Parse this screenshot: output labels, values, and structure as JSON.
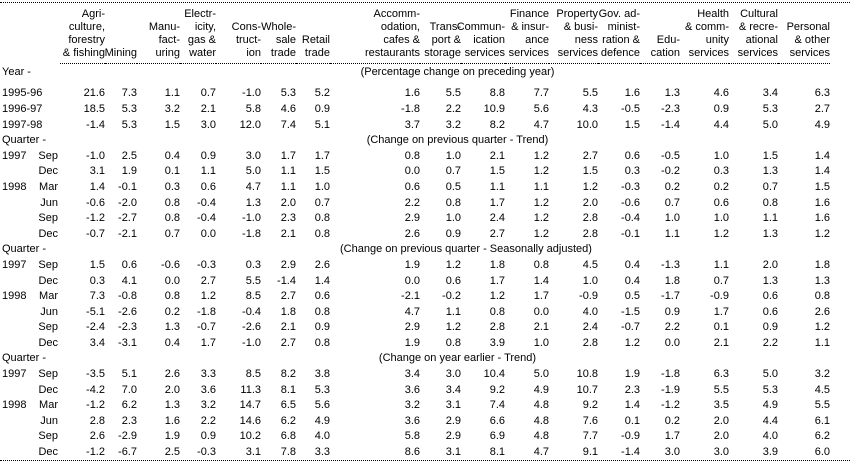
{
  "table": {
    "columns": [
      {
        "id": "agriculture-forestry-fishing",
        "header_lines": [
          "Agri-",
          "culture,",
          "forestry",
          "& fishing"
        ]
      },
      {
        "id": "mining",
        "header_lines": [
          "Mining"
        ]
      },
      {
        "id": "manufacturing",
        "header_lines": [
          "Manu-",
          "fact-",
          "uring"
        ]
      },
      {
        "id": "electricity-gas-water",
        "header_lines": [
          "Electr-",
          "icity,",
          "gas &",
          "water"
        ]
      },
      {
        "id": "construction",
        "header_lines": [
          "Cons-",
          "truct-",
          "ion"
        ]
      },
      {
        "id": "wholesale-trade",
        "header_lines": [
          "Whole-",
          "sale",
          "trade"
        ]
      },
      {
        "id": "retail-trade",
        "header_lines": [
          "Retail",
          "trade"
        ]
      },
      {
        "id": "accommodation-cafes-restaurants",
        "header_lines": [
          "Accomm-",
          "odation,",
          "cafes &",
          "restaurants"
        ]
      },
      {
        "id": "transport-storage",
        "header_lines": [
          "Trans-",
          "port &",
          "storage"
        ]
      },
      {
        "id": "communication-services",
        "header_lines": [
          "Commun-",
          "ication",
          "services"
        ]
      },
      {
        "id": "finance-insurance-services",
        "header_lines": [
          "Finance",
          "& insur-",
          "ance",
          "services"
        ]
      },
      {
        "id": "property-business-services",
        "header_lines": [
          "Property",
          "& busi-",
          "ness",
          "services"
        ]
      },
      {
        "id": "gov-administration-defence",
        "header_lines": [
          "Gov. ad-",
          "minist-",
          "ration &",
          "defence"
        ]
      },
      {
        "id": "education",
        "header_lines": [
          "Edu-",
          "cation"
        ]
      },
      {
        "id": "health-community-services",
        "header_lines": [
          "Health",
          "& comm-",
          "unity",
          "services"
        ]
      },
      {
        "id": "cultural-recreational-services",
        "header_lines": [
          "Cultural",
          "& recre-",
          "ational",
          "services"
        ]
      },
      {
        "id": "personal-other-services",
        "header_lines": [
          "Personal",
          "& other",
          "services"
        ]
      }
    ],
    "sections": [
      {
        "label": "Year -",
        "caption": "(Percentage change on preceding year)",
        "gap_after_caption": true,
        "rows": [
          {
            "period": "1995-96",
            "sub": "",
            "values": [
              21.6,
              7.3,
              1.1,
              0.7,
              -1.0,
              5.3,
              5.2,
              1.6,
              5.5,
              8.8,
              7.7,
              5.5,
              1.6,
              1.3,
              4.6,
              3.4,
              6.3
            ]
          },
          {
            "period": "1996-97",
            "sub": "",
            "values": [
              18.5,
              5.3,
              3.2,
              2.1,
              5.8,
              4.6,
              0.9,
              -1.8,
              2.2,
              10.9,
              5.6,
              4.3,
              -0.5,
              -2.3,
              0.9,
              5.3,
              2.7
            ]
          },
          {
            "period": "1997-98",
            "sub": "",
            "values": [
              -1.4,
              5.3,
              1.5,
              3.0,
              12.0,
              7.4,
              5.1,
              3.7,
              3.2,
              8.2,
              4.7,
              10.0,
              1.5,
              -1.4,
              4.4,
              5.0,
              4.9
            ]
          }
        ]
      },
      {
        "label": "Quarter -",
        "caption": "(Change on previous quarter - Trend)",
        "gap_after_caption": false,
        "rows": [
          {
            "period": "1997",
            "sub": "Sep",
            "values": [
              -1.0,
              2.5,
              0.4,
              0.9,
              3.0,
              1.7,
              1.7,
              0.8,
              1.0,
              2.1,
              1.2,
              2.7,
              0.6,
              -0.5,
              1.0,
              1.5,
              1.4
            ]
          },
          {
            "period": "",
            "sub": "Dec",
            "values": [
              3.1,
              1.9,
              0.1,
              1.1,
              5.0,
              1.1,
              1.5,
              0.0,
              0.7,
              1.5,
              1.2,
              1.5,
              0.3,
              -0.2,
              0.3,
              1.3,
              1.4
            ]
          },
          {
            "period": "1998",
            "sub": "Mar",
            "values": [
              1.4,
              -0.1,
              0.3,
              0.6,
              4.7,
              1.1,
              1.0,
              0.6,
              0.5,
              1.1,
              1.1,
              1.2,
              -0.3,
              0.2,
              0.2,
              0.7,
              1.5
            ]
          },
          {
            "period": "",
            "sub": "Jun",
            "values": [
              -0.6,
              -2.0,
              0.8,
              -0.4,
              1.3,
              2.0,
              0.7,
              2.2,
              0.8,
              1.7,
              1.2,
              2.0,
              -0.6,
              0.7,
              0.6,
              0.8,
              1.6
            ]
          },
          {
            "period": "",
            "sub": "Sep",
            "values": [
              -1.2,
              -2.7,
              0.8,
              -0.4,
              -1.0,
              2.3,
              0.8,
              2.9,
              1.0,
              2.4,
              1.2,
              2.8,
              -0.4,
              1.0,
              1.0,
              1.1,
              1.6
            ]
          },
          {
            "period": "",
            "sub": "Dec",
            "values": [
              -0.7,
              -2.1,
              0.7,
              0.0,
              -1.8,
              2.1,
              0.8,
              2.6,
              0.9,
              2.7,
              1.2,
              2.8,
              -0.1,
              1.1,
              1.2,
              1.3,
              1.2
            ]
          }
        ]
      },
      {
        "label": "Quarter -",
        "caption": "(Change on previous quarter - Seasonally adjusted)",
        "gap_after_caption": false,
        "rows": [
          {
            "period": "1997",
            "sub": "Sep",
            "values": [
              1.5,
              0.6,
              -0.6,
              -0.3,
              0.3,
              2.9,
              2.6,
              1.9,
              1.2,
              1.8,
              0.8,
              4.5,
              0.4,
              -1.3,
              1.1,
              2.0,
              1.8
            ]
          },
          {
            "period": "",
            "sub": "Dec",
            "values": [
              0.3,
              4.1,
              0.0,
              2.7,
              5.5,
              -1.4,
              1.4,
              0.0,
              0.6,
              1.7,
              1.4,
              1.0,
              0.4,
              1.8,
              0.7,
              1.3,
              1.3
            ]
          },
          {
            "period": "1998",
            "sub": "Mar",
            "values": [
              7.3,
              -0.8,
              0.8,
              1.2,
              8.5,
              2.7,
              0.6,
              -2.1,
              -0.2,
              1.2,
              1.7,
              -0.9,
              0.5,
              -1.7,
              -0.9,
              0.6,
              0.8
            ]
          },
          {
            "period": "",
            "sub": "Jun",
            "values": [
              -5.1,
              -2.6,
              0.2,
              -1.8,
              -0.4,
              1.8,
              0.8,
              4.7,
              1.1,
              0.8,
              0.0,
              4.0,
              -1.5,
              0.9,
              1.7,
              0.6,
              2.6
            ]
          },
          {
            "period": "",
            "sub": "Sep",
            "values": [
              -2.4,
              -2.3,
              1.3,
              -0.7,
              -2.6,
              2.1,
              0.9,
              2.9,
              1.2,
              2.8,
              2.1,
              2.4,
              -0.7,
              2.2,
              0.1,
              0.9,
              1.2
            ]
          },
          {
            "period": "",
            "sub": "Dec",
            "values": [
              3.4,
              -3.1,
              0.4,
              1.7,
              -1.0,
              2.7,
              0.8,
              1.9,
              0.8,
              3.9,
              1.0,
              2.8,
              1.2,
              0.0,
              2.1,
              2.2,
              1.1
            ]
          }
        ]
      },
      {
        "label": "Quarter -",
        "caption": "(Change on year earlier - Trend)",
        "gap_after_caption": false,
        "rows": [
          {
            "period": "1997",
            "sub": "Sep",
            "values": [
              -3.5,
              5.1,
              2.6,
              3.3,
              8.5,
              8.2,
              3.8,
              3.4,
              3.0,
              10.4,
              5.0,
              10.8,
              1.9,
              -1.8,
              6.3,
              5.0,
              3.2
            ]
          },
          {
            "period": "",
            "sub": "Dec",
            "values": [
              -4.2,
              7.0,
              2.0,
              3.6,
              11.3,
              8.1,
              5.3,
              3.6,
              3.4,
              9.2,
              4.9,
              10.7,
              2.3,
              -1.9,
              5.5,
              5.3,
              4.5
            ]
          },
          {
            "period": "1998",
            "sub": "Mar",
            "values": [
              -1.2,
              6.2,
              1.3,
              3.2,
              14.7,
              6.5,
              5.6,
              3.2,
              3.1,
              7.4,
              4.8,
              9.2,
              1.4,
              -1.2,
              3.5,
              4.9,
              5.5
            ]
          },
          {
            "period": "",
            "sub": "Jun",
            "values": [
              2.8,
              2.3,
              1.6,
              2.2,
              14.6,
              6.2,
              4.9,
              3.6,
              2.9,
              6.6,
              4.8,
              7.6,
              0.1,
              0.2,
              2.0,
              4.4,
              6.1
            ]
          },
          {
            "period": "",
            "sub": "Sep",
            "values": [
              2.6,
              -2.9,
              1.9,
              0.9,
              10.2,
              6.8,
              4.0,
              5.8,
              2.9,
              6.9,
              4.8,
              7.7,
              -0.9,
              1.7,
              2.0,
              4.0,
              6.2
            ]
          },
          {
            "period": "",
            "sub": "Dec",
            "values": [
              -1.2,
              -6.7,
              2.5,
              -0.3,
              3.1,
              7.8,
              3.3,
              8.6,
              3.1,
              8.1,
              4.7,
              9.1,
              -1.4,
              3.0,
              3.0,
              3.9,
              6.0
            ]
          }
        ]
      }
    ],
    "value_format_decimals": 1,
    "text_color": "#000000",
    "background_color": "#ffffff"
  }
}
